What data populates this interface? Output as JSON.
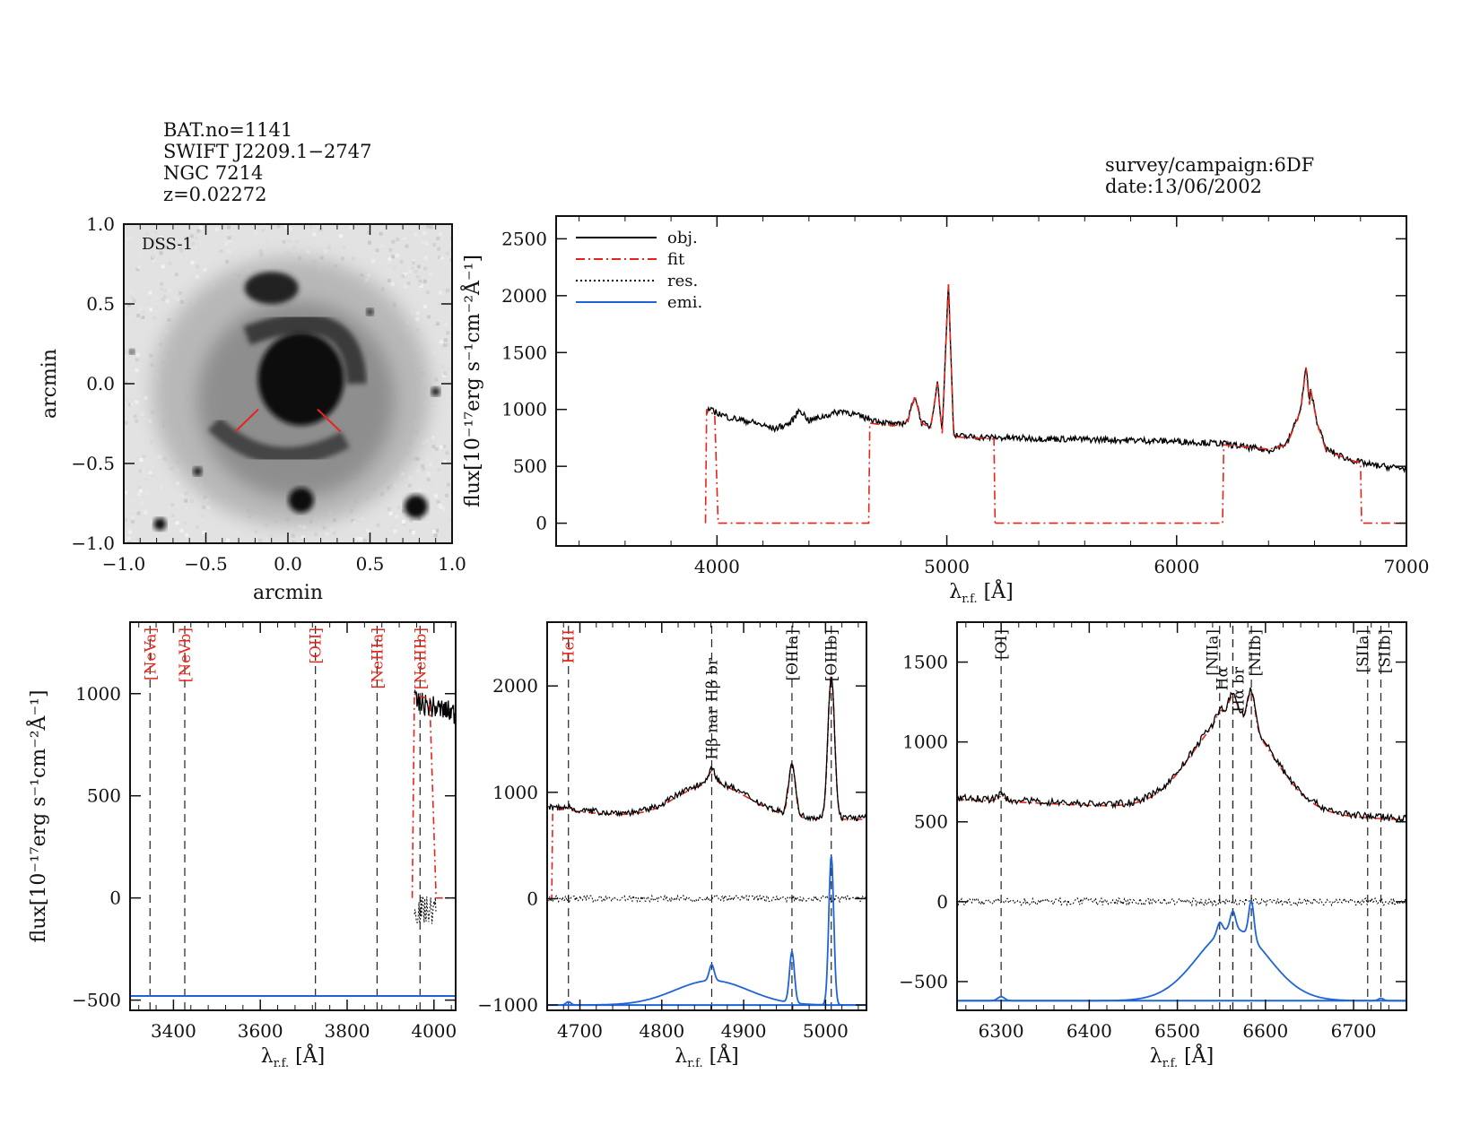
{
  "header": {
    "left_lines": [
      "BAT.no=1141",
      "SWIFT J2209.1−2747",
      "NGC 7214",
      "z=0.02272"
    ],
    "right_lines": [
      "survey/campaign:6DF",
      "date:13/06/2002"
    ]
  },
  "colors": {
    "obj": "#000000",
    "fit": "#e8241a",
    "res": "#000000",
    "emi": "#1f64d6",
    "line_label_red": "#e8241a"
  },
  "chart_data": [
    {
      "id": "image",
      "type": "heatmap",
      "label": "DSS-1",
      "xlabel": "arcmin",
      "ylabel": "arcmin",
      "xlim": [
        -1.0,
        1.0
      ],
      "ylim": [
        -1.0,
        1.0
      ],
      "xticks": [
        "−1.0",
        "−0.5",
        "0.0",
        "0.5",
        "1.0"
      ],
      "yticks": [
        "1.0",
        "0.5",
        "0.0",
        "−0.5",
        "−1.0"
      ]
    },
    {
      "id": "full",
      "type": "line",
      "xlabel": "λ",
      "xlabel_sub": "r.f.",
      "xlabel_unit": "[Å]",
      "ylabel": "flux[10⁻¹⁷erg s⁻¹cm⁻²Å⁻¹]",
      "xlim": [
        3300,
        7000
      ],
      "ylim": [
        -200,
        2700
      ],
      "xticks": [
        4000,
        5000,
        6000,
        7000
      ],
      "yticks": [
        0,
        500,
        1000,
        1500,
        2000,
        2500
      ],
      "legend": {
        "position": "top-left",
        "entries": [
          "obj.",
          "fit",
          "res.",
          "emi."
        ]
      },
      "obj_points": [
        [
          3960,
          1000
        ],
        [
          3990,
          980
        ],
        [
          4050,
          930
        ],
        [
          4150,
          890
        ],
        [
          4250,
          830
        ],
        [
          4320,
          880
        ],
        [
          4360,
          1000
        ],
        [
          4400,
          900
        ],
        [
          4480,
          950
        ],
        [
          4550,
          990
        ],
        [
          4620,
          940
        ],
        [
          4700,
          900
        ],
        [
          4780,
          860
        ],
        [
          4830,
          900
        ],
        [
          4861,
          1130
        ],
        [
          4890,
          880
        ],
        [
          4930,
          850
        ],
        [
          4959,
          1250
        ],
        [
          4980,
          800
        ],
        [
          5007,
          2120
        ],
        [
          5030,
          770
        ],
        [
          5100,
          760
        ],
        [
          5250,
          750
        ],
        [
          5500,
          740
        ],
        [
          5800,
          730
        ],
        [
          6000,
          720
        ],
        [
          6200,
          700
        ],
        [
          6400,
          640
        ],
        [
          6480,
          700
        ],
        [
          6540,
          1000
        ],
        [
          6563,
          1380
        ],
        [
          6578,
          1050
        ],
        [
          6584,
          1180
        ],
        [
          6610,
          900
        ],
        [
          6650,
          650
        ],
        [
          6750,
          560
        ],
        [
          6850,
          510
        ],
        [
          7000,
          480
        ]
      ],
      "fit_segments": [
        [
          [
            3950,
            0
          ],
          [
            3955,
            1000
          ],
          [
            3960,
            980
          ],
          [
            3990,
            960
          ],
          [
            4005,
            0
          ]
        ],
        [
          [
            4005,
            0
          ],
          [
            4660,
            0
          ],
          [
            4665,
            880
          ],
          [
            4700,
            870
          ],
          [
            4780,
            860
          ],
          [
            4830,
            900
          ],
          [
            4861,
            1120
          ],
          [
            4890,
            880
          ],
          [
            4930,
            840
          ],
          [
            4959,
            1230
          ],
          [
            4980,
            790
          ],
          [
            5007,
            2100
          ],
          [
            5030,
            760
          ],
          [
            5100,
            750
          ],
          [
            5205,
            740
          ],
          [
            5210,
            0
          ]
        ],
        [
          [
            5210,
            0
          ],
          [
            6200,
            0
          ],
          [
            6205,
            690
          ],
          [
            6300,
            670
          ],
          [
            6400,
            650
          ],
          [
            6480,
            690
          ],
          [
            6540,
            990
          ],
          [
            6563,
            1370
          ],
          [
            6578,
            1040
          ],
          [
            6584,
            1170
          ],
          [
            6610,
            890
          ],
          [
            6650,
            640
          ],
          [
            6750,
            560
          ],
          [
            6800,
            530
          ],
          [
            6805,
            0
          ],
          [
            7000,
            0
          ]
        ]
      ]
    },
    {
      "id": "blue",
      "type": "line",
      "xlabel": "λ",
      "xlabel_sub": "r.f.",
      "xlabel_unit": "[Å]",
      "ylabel": "flux[10⁻¹⁷erg s⁻¹cm⁻²Å⁻¹]",
      "xlim": [
        3300,
        4050
      ],
      "ylim": [
        -550,
        1350
      ],
      "xticks": [
        3400,
        3600,
        3800,
        4000
      ],
      "yticks": [
        -500,
        0,
        500,
        1000
      ],
      "lines": [
        {
          "label": "[NeVa]",
          "x": 3346,
          "color": "red"
        },
        {
          "label": "[NeVb]",
          "x": 3426,
          "color": "red"
        },
        {
          "label": "[OII]",
          "x": 3727,
          "color": "red"
        },
        {
          "label": "[NeIIIa]",
          "x": 3869,
          "color": "red"
        },
        {
          "label": "[NeIIIb]",
          "x": 3968,
          "color": "red"
        }
      ]
    },
    {
      "id": "hbeta",
      "type": "line",
      "xlabel": "λ",
      "xlabel_sub": "r.f.",
      "xlabel_unit": "[Å]",
      "xlim": [
        4660,
        5050
      ],
      "ylim": [
        -1050,
        2600
      ],
      "xticks": [
        4700,
        4800,
        4900,
        5000
      ],
      "yticks": [
        -1000,
        0,
        1000,
        2000
      ],
      "lines": [
        {
          "label": "HeII",
          "x": 4686,
          "color": "red"
        },
        {
          "label": "Hβ nar Hβ br",
          "x": 4861,
          "color": "black"
        },
        {
          "label": "[OIIIa]",
          "x": 4959,
          "color": "black"
        },
        {
          "label": "[OIIIb]",
          "x": 5007,
          "color": "black"
        }
      ]
    },
    {
      "id": "halpha",
      "type": "line",
      "xlabel": "λ",
      "xlabel_sub": "r.f.",
      "xlabel_unit": "[Å]",
      "xlim": [
        6250,
        6760
      ],
      "ylim": [
        -680,
        1750
      ],
      "xticks": [
        6300,
        6400,
        6500,
        6600,
        6700
      ],
      "yticks": [
        -500,
        0,
        500,
        1000,
        1500
      ],
      "lines": [
        {
          "label": "[OI]",
          "x": 6300,
          "color": "black"
        },
        {
          "label": "[NIIa]",
          "x": 6548,
          "color": "black"
        },
        {
          "label": "Hα",
          "x": 6563,
          "color": "black"
        },
        {
          "label": "Hα br",
          "x": 6563,
          "color": "black"
        },
        {
          "label": "[NIIb]",
          "x": 6584,
          "color": "black"
        },
        {
          "label": "[SIIa]",
          "x": 6716,
          "color": "black"
        },
        {
          "label": "[SIIb]",
          "x": 6731,
          "color": "black"
        }
      ]
    }
  ]
}
